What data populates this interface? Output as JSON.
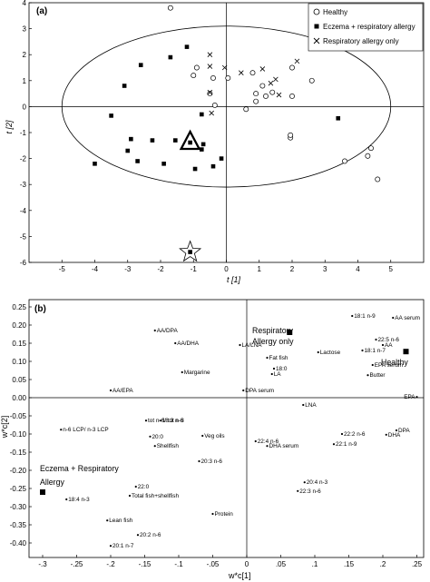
{
  "chart_data": [
    {
      "type": "scatter",
      "panel_label": "(a)",
      "xlabel": "t [1]",
      "ylabel": "t [2]",
      "xlim": [
        -6,
        6
      ],
      "ylim": [
        -6,
        4
      ],
      "x_ticks": [
        -5,
        -4,
        -3,
        -2,
        -1,
        0,
        1,
        2,
        3,
        4,
        5
      ],
      "y_ticks": [
        -6,
        -5,
        -4,
        -3,
        -2,
        -1,
        0,
        1,
        2,
        3,
        4
      ],
      "ellipse": {
        "center": [
          0,
          0
        ],
        "rx": 5.0,
        "ry": 3.1
      },
      "legend_position": "top-right",
      "series": [
        {
          "name": "Healthy",
          "marker": "open-circle",
          "x": [
            -1.7,
            -0.9,
            -0.4,
            -0.5,
            -0.35,
            0.8,
            0.9,
            1.1,
            1.4,
            2.0,
            2.0,
            2.6,
            1.95,
            1.2,
            1.95,
            3.6,
            4.4,
            4.3,
            4.6,
            -1.0,
            0.05,
            0.9,
            0.6
          ],
          "y": [
            3.8,
            1.5,
            1.1,
            0.5,
            0.05,
            1.3,
            0.5,
            0.8,
            0.55,
            1.5,
            0.4,
            1.0,
            -1.2,
            0.4,
            -1.1,
            -2.1,
            -1.6,
            -1.9,
            -2.8,
            1.2,
            1.1,
            0.2,
            -0.1
          ]
        },
        {
          "name": "Eczema + respiratory allergy",
          "marker": "filled-square",
          "x": [
            -1.7,
            -2.6,
            -1.2,
            -3.1,
            -3.5,
            -2.9,
            -3.0,
            -2.7,
            -2.25,
            -4.0,
            -1.9,
            -0.7,
            -0.75,
            -0.4,
            -0.95,
            -0.75,
            -0.15,
            3.4,
            -1.55
          ],
          "y": [
            1.9,
            1.6,
            2.3,
            0.8,
            -0.35,
            -1.25,
            -1.7,
            -2.1,
            -1.3,
            -2.2,
            -2.2,
            -1.45,
            -0.3,
            -2.3,
            -2.4,
            -1.65,
            -2.0,
            -0.45,
            -1.3
          ]
        },
        {
          "name": "Respiratory allergy only",
          "marker": "cross",
          "x": [
            -0.5,
            -0.5,
            -0.05,
            0.45,
            1.1,
            1.5,
            1.35,
            2.15,
            1.6,
            -0.5,
            -0.45
          ],
          "y": [
            2.0,
            1.55,
            1.5,
            1.3,
            1.45,
            1.05,
            0.9,
            1.75,
            0.45,
            0.55,
            -0.25
          ]
        }
      ],
      "highlighted": [
        {
          "label": "triangle",
          "x": -1.1,
          "y": -1.35
        },
        {
          "label": "star",
          "x": -1.1,
          "y": -5.6
        }
      ]
    },
    {
      "type": "scatter",
      "panel_label": "(b)",
      "xlabel": "w*c[1]",
      "ylabel": "w*c[2]",
      "xlim": [
        -0.32,
        0.26
      ],
      "ylim": [
        -0.44,
        0.27
      ],
      "x_ticks": [
        -0.3,
        -0.25,
        -0.2,
        -0.15,
        -0.1,
        -0.05,
        0,
        0.05,
        0.1,
        0.15,
        0.2,
        0.25
      ],
      "y_ticks": [
        -0.4,
        -0.35,
        -0.3,
        -0.25,
        -0.2,
        -0.15,
        -0.1,
        -0.05,
        0,
        0.05,
        0.1,
        0.15,
        0.2,
        0.25
      ],
      "group_labels": [
        {
          "label": "Respiratory Allergy only",
          "x": 0.063,
          "y": 0.18,
          "marker": true
        },
        {
          "label": "Healthy",
          "x": 0.234,
          "y": 0.127,
          "marker": true
        },
        {
          "label": "Eczema + Respiratory Allergy",
          "x": -0.3,
          "y": -0.26,
          "marker": true
        }
      ],
      "points": [
        {
          "label": "AA/DPA",
          "x": -0.135,
          "y": 0.185
        },
        {
          "label": "AA/DHA",
          "x": -0.105,
          "y": 0.15
        },
        {
          "label": "LA/LNA",
          "x": -0.01,
          "y": 0.145
        },
        {
          "label": "AA/EPA",
          "x": -0.2,
          "y": 0.02
        },
        {
          "label": "Margarine",
          "x": -0.095,
          "y": 0.07
        },
        {
          "label": "DPA serum",
          "x": -0.005,
          "y": 0.02
        },
        {
          "label": "18:1 n-9",
          "x": 0.155,
          "y": 0.225
        },
        {
          "label": "AA serum",
          "x": 0.215,
          "y": 0.22
        },
        {
          "label": "22:5 n-6",
          "x": 0.19,
          "y": 0.16
        },
        {
          "label": "AA",
          "x": 0.2,
          "y": 0.145
        },
        {
          "label": "18:1 n-7",
          "x": 0.17,
          "y": 0.13
        },
        {
          "label": "Lactose",
          "x": 0.105,
          "y": 0.125
        },
        {
          "label": "Fat fish",
          "x": 0.03,
          "y": 0.11
        },
        {
          "label": "18:0",
          "x": 0.04,
          "y": 0.08
        },
        {
          "label": "LA",
          "x": 0.037,
          "y": 0.065
        },
        {
          "label": "EPA serum",
          "x": 0.185,
          "y": 0.09
        },
        {
          "label": "Butter",
          "x": 0.178,
          "y": 0.062
        },
        {
          "label": "EPA",
          "x": 0.25,
          "y": 0.002
        },
        {
          "label": "LNA",
          "x": 0.083,
          "y": -0.02
        },
        {
          "label": "tot n-6/ tot n-3",
          "x": -0.148,
          "y": -0.063
        },
        {
          "label": "n-6 LCP/ n-3 LCP",
          "x": -0.273,
          "y": -0.088
        },
        {
          "label": "18:3 n-6",
          "x": -0.127,
          "y": -0.063
        },
        {
          "label": "20:0",
          "x": -0.142,
          "y": -0.107
        },
        {
          "label": "Shellfish",
          "x": -0.135,
          "y": -0.133
        },
        {
          "label": "Veg oils",
          "x": -0.065,
          "y": -0.105
        },
        {
          "label": "20:3 n-6",
          "x": -0.07,
          "y": -0.175
        },
        {
          "label": "22:0",
          "x": -0.163,
          "y": -0.245
        },
        {
          "label": "Total fish+shellfish",
          "x": -0.172,
          "y": -0.27
        },
        {
          "label": "18:4 n-3",
          "x": -0.265,
          "y": -0.28
        },
        {
          "label": "Lean fish",
          "x": -0.205,
          "y": -0.338
        },
        {
          "label": "Protein",
          "x": -0.05,
          "y": -0.32
        },
        {
          "label": "20:2 n-6",
          "x": -0.16,
          "y": -0.378
        },
        {
          "label": "20:1 n-7",
          "x": -0.2,
          "y": -0.408
        },
        {
          "label": "DPA",
          "x": 0.22,
          "y": -0.09
        },
        {
          "label": "DHA",
          "x": 0.205,
          "y": -0.102
        },
        {
          "label": "22:4 n-6",
          "x": 0.013,
          "y": -0.12
        },
        {
          "label": "DHA serum",
          "x": 0.03,
          "y": -0.133
        },
        {
          "label": "22:2 n-6",
          "x": 0.14,
          "y": -0.1
        },
        {
          "label": "22:1 n-9",
          "x": 0.128,
          "y": -0.128
        },
        {
          "label": "20:4 n-3",
          "x": 0.085,
          "y": -0.233
        },
        {
          "label": "22:3 n-6",
          "x": 0.075,
          "y": -0.257
        }
      ]
    }
  ]
}
